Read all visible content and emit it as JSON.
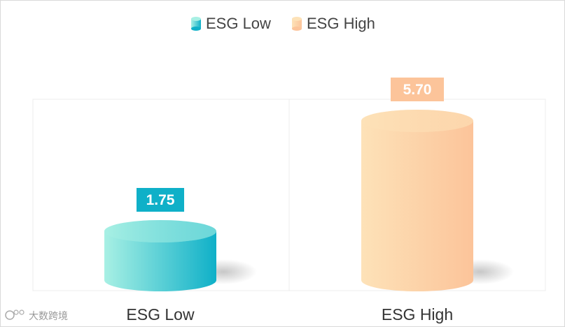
{
  "chart_data": {
    "type": "bar",
    "style": "3d-cylinder",
    "categories": [
      "ESG Low",
      "ESG High"
    ],
    "series": [
      {
        "name": "ESG Low",
        "values": [
          1.75,
          null
        ],
        "color": "#0fb0c8",
        "color_light": "#a8f0e4"
      },
      {
        "name": "ESG High",
        "values": [
          null,
          5.7
        ],
        "color": "#fcc49a",
        "color_light": "#fde2b8"
      }
    ],
    "value_labels": [
      "1.75",
      "5.70"
    ],
    "ylim": [
      0,
      6.0
    ],
    "legend_position": "top-center",
    "grid": false
  },
  "watermark": "大数跨境"
}
